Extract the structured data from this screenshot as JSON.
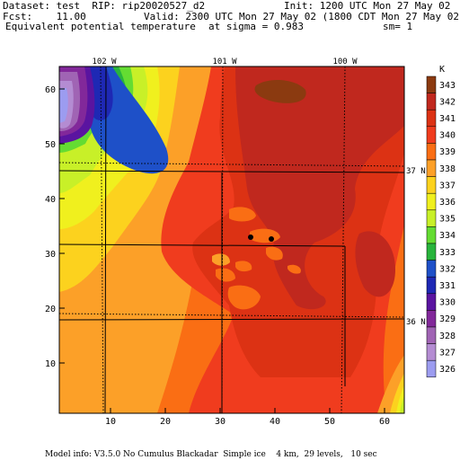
{
  "header": {
    "dataset": "Dataset: test  RIP: rip20020527_d2",
    "init": "Init: 1200 UTC Mon 27 May 02",
    "fcst": "Fcst:    11.00",
    "valid": "Valid: 2300 UTC Mon 27 May 02 (1800 CDT Mon 27 May 02)",
    "field": "Equivalent potential temperature",
    "sigma": "at sigma = 0.983",
    "sm": "sm= 1"
  },
  "footer": {
    "model_info": "Model info: V3.5.0 No Cumulus Blackadar  Simple ice    4 km,  29 levels,   10 sec"
  },
  "map": {
    "x_ticks": [
      "10",
      "20",
      "30",
      "40",
      "50",
      "60"
    ],
    "y_ticks": [
      "10",
      "20",
      "30",
      "40",
      "50",
      "60"
    ],
    "lon_labels": [
      "102 W",
      "101 W",
      "100 W"
    ],
    "lat_labels": [
      "37 N",
      "36 N"
    ]
  },
  "legend": {
    "unit": "K",
    "levels": [
      {
        "value": "343",
        "color": "#8b3a10"
      },
      {
        "value": "342",
        "color": "#c0281e"
      },
      {
        "value": "341",
        "color": "#dc3214"
      },
      {
        "value": "340",
        "color": "#f03c1e"
      },
      {
        "value": "339",
        "color": "#fa6e14"
      },
      {
        "value": "338",
        "color": "#fca028"
      },
      {
        "value": "337",
        "color": "#fcd21e"
      },
      {
        "value": "336",
        "color": "#f0f01e"
      },
      {
        "value": "335",
        "color": "#c8f028"
      },
      {
        "value": "334",
        "color": "#64dc32"
      },
      {
        "value": "333",
        "color": "#28b43c"
      },
      {
        "value": "332",
        "color": "#1e50c8"
      },
      {
        "value": "331",
        "color": "#1e28b4"
      },
      {
        "value": "330",
        "color": "#5a14a0"
      },
      {
        "value": "329",
        "color": "#82289a"
      },
      {
        "value": "328",
        "color": "#a064b4"
      },
      {
        "value": "327",
        "color": "#b48cd2"
      },
      {
        "value": "326",
        "color": "#9c9cf0"
      }
    ]
  }
}
